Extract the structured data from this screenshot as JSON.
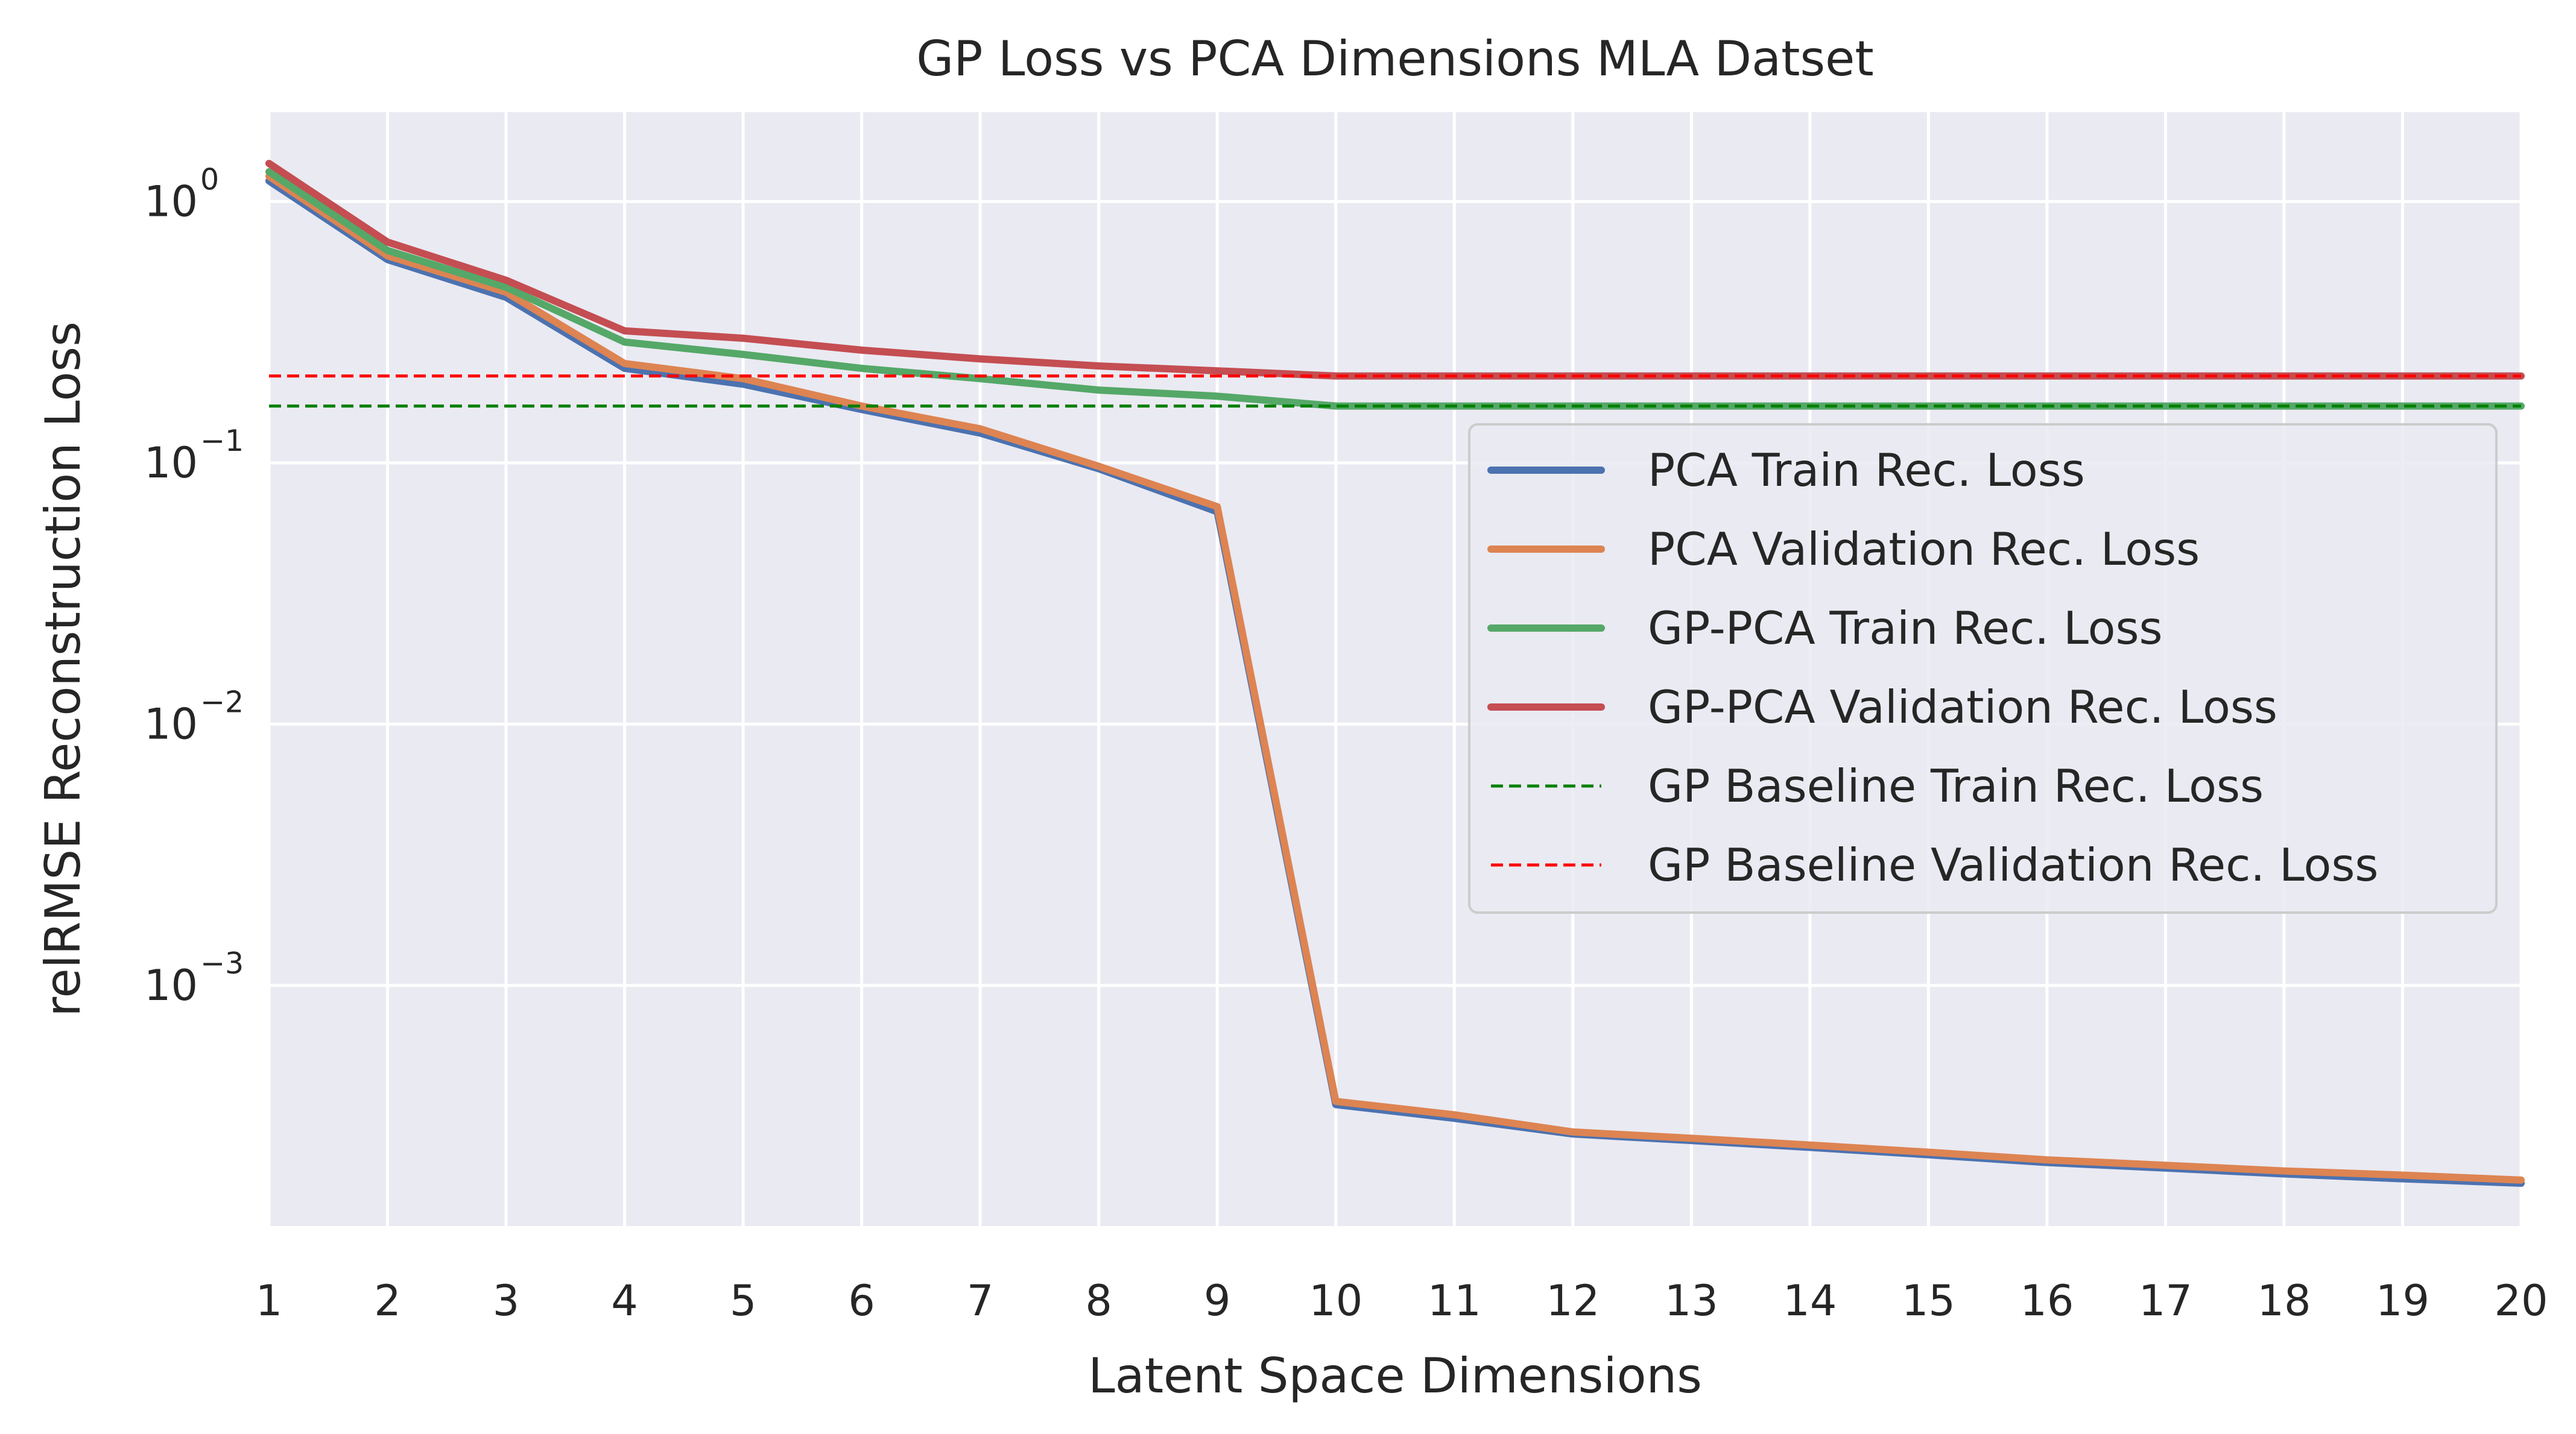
{
  "chart_data": {
    "type": "line",
    "title": "GP Loss vs PCA Dimensions MLA Datset",
    "xlabel": "Latent Space Dimensions",
    "ylabel": "relRMSE Reconstruction Loss",
    "yscale": "log",
    "xlim": [
      1,
      20
    ],
    "ylim": [
      0.00012,
      2.2
    ],
    "x": [
      1,
      2,
      3,
      4,
      5,
      6,
      7,
      8,
      9,
      10,
      11,
      12,
      13,
      14,
      15,
      16,
      17,
      18,
      19,
      20
    ],
    "yticks": [
      {
        "base": "10",
        "exp": "0",
        "value": 1
      },
      {
        "base": "10",
        "exp": "−1",
        "value": 0.1
      },
      {
        "base": "10",
        "exp": "−2",
        "value": 0.01
      },
      {
        "base": "10",
        "exp": "−3",
        "value": 0.001
      }
    ],
    "grid": true,
    "legend_position": "center-right",
    "series": [
      {
        "name": "PCA Train Rec. Loss",
        "color": "#4c72b0",
        "style": "solid",
        "values": [
          1.2,
          0.6,
          0.43,
          0.23,
          0.2,
          0.16,
          0.13,
          0.095,
          0.065,
          0.00035,
          0.00031,
          0.00027,
          0.000255,
          0.00024,
          0.000225,
          0.00021,
          0.0002,
          0.00019,
          0.000182,
          0.000175
        ]
      },
      {
        "name": "PCA Validation Rec. Loss",
        "color": "#dd8452",
        "style": "solid",
        "values": [
          1.25,
          0.62,
          0.45,
          0.24,
          0.21,
          0.165,
          0.135,
          0.097,
          0.068,
          0.00036,
          0.00032,
          0.000275,
          0.00026,
          0.000245,
          0.00023,
          0.000215,
          0.000205,
          0.000195,
          0.000188,
          0.00018
        ]
      },
      {
        "name": "GP-PCA Train Rec. Loss",
        "color": "#55a868",
        "style": "solid",
        "values": [
          1.3,
          0.65,
          0.47,
          0.29,
          0.26,
          0.23,
          0.21,
          0.19,
          0.18,
          0.165,
          0.165,
          0.165,
          0.165,
          0.165,
          0.165,
          0.165,
          0.165,
          0.165,
          0.165,
          0.165
        ]
      },
      {
        "name": "GP-PCA Validation Rec. Loss",
        "color": "#c44e52",
        "style": "solid",
        "values": [
          1.4,
          0.7,
          0.5,
          0.32,
          0.3,
          0.27,
          0.25,
          0.235,
          0.225,
          0.215,
          0.215,
          0.215,
          0.215,
          0.215,
          0.215,
          0.215,
          0.215,
          0.215,
          0.215,
          0.215
        ]
      },
      {
        "name": "GP Baseline Train Rec. Loss",
        "color": "#008000",
        "style": "dashed",
        "values": [
          0.165,
          0.165,
          0.165,
          0.165,
          0.165,
          0.165,
          0.165,
          0.165,
          0.165,
          0.165,
          0.165,
          0.165,
          0.165,
          0.165,
          0.165,
          0.165,
          0.165,
          0.165,
          0.165,
          0.165
        ]
      },
      {
        "name": "GP Baseline Validation Rec. Loss",
        "color": "#ff0000",
        "style": "dashed",
        "values": [
          0.215,
          0.215,
          0.215,
          0.215,
          0.215,
          0.215,
          0.215,
          0.215,
          0.215,
          0.215,
          0.215,
          0.215,
          0.215,
          0.215,
          0.215,
          0.215,
          0.215,
          0.215,
          0.215,
          0.215
        ]
      }
    ]
  }
}
